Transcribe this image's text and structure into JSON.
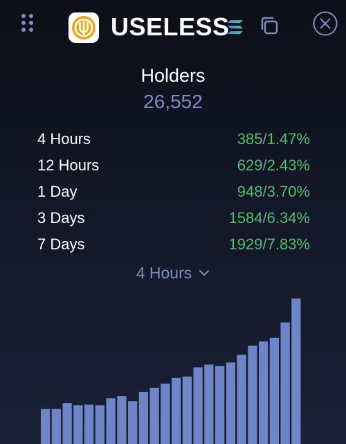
{
  "header": {
    "token_name": "USELESS",
    "drag_icon": "grid-dots-icon",
    "logo_icon": "useless-logo-icon",
    "chain_icon": "solana-icon",
    "copy_icon": "copy-icon",
    "close_icon": "close-circle-icon"
  },
  "holders": {
    "title": "Holders",
    "count": "26,552"
  },
  "stats": [
    {
      "label": "4 Hours",
      "count": "385",
      "percent": "1.47%"
    },
    {
      "label": "12 Hours",
      "count": "629",
      "percent": "2.43%"
    },
    {
      "label": "1 Day",
      "count": "948",
      "percent": "3.70%"
    },
    {
      "label": "3 Days",
      "count": "1584",
      "percent": "6.34%"
    },
    {
      "label": "7 Days",
      "count": "1929",
      "percent": "7.83%"
    }
  ],
  "period": {
    "selected": "4 Hours",
    "icon": "chevron-down-icon"
  },
  "colors": {
    "positive": "#4fbf6a",
    "accent": "#7a8fc6",
    "bar": "#6e86c8",
    "logo_gold": "#e8a91a"
  },
  "chart_data": {
    "type": "bar",
    "values": [
      50,
      50,
      58,
      55,
      56,
      55,
      65,
      68,
      61,
      74,
      80,
      86,
      94,
      96,
      109,
      113,
      111,
      116,
      127,
      140,
      146,
      151,
      173,
      207
    ]
  }
}
